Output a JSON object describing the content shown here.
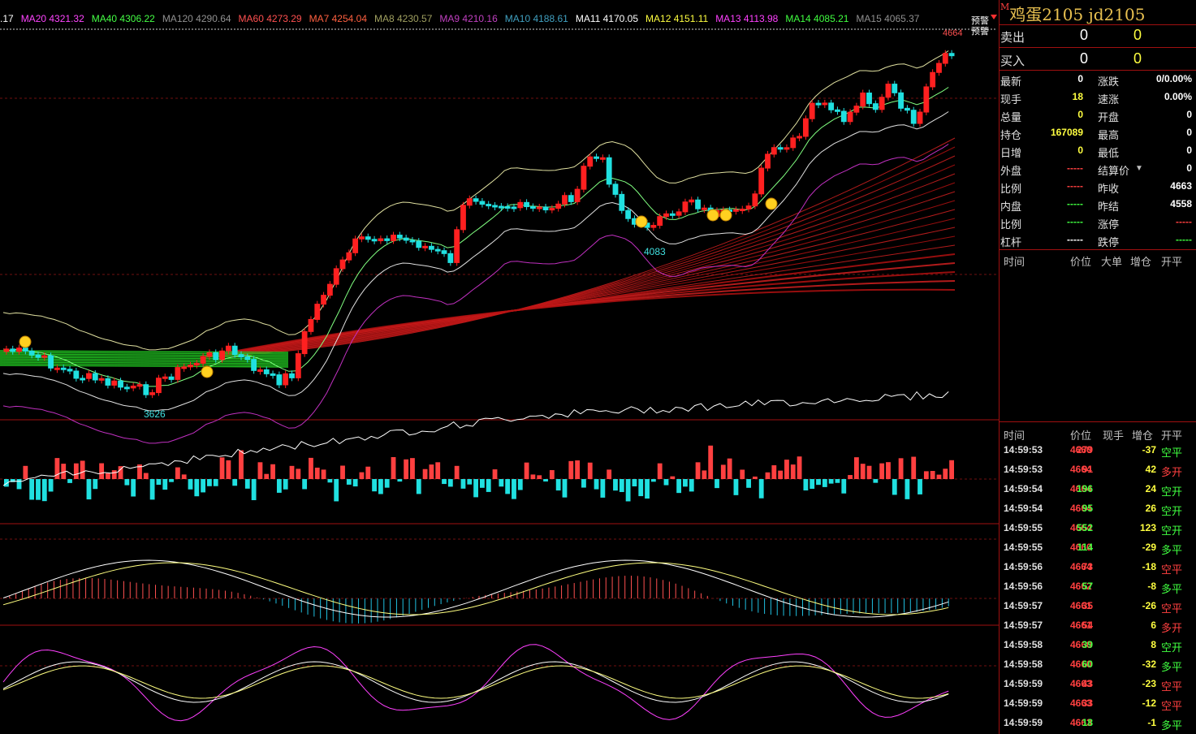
{
  "ma_indicators": [
    {
      "label": ".17",
      "color": "#ffffff"
    },
    {
      "label": "MA20 4321.32",
      "color": "#ff44ff"
    },
    {
      "label": "MA40 4306.22",
      "color": "#44ff44"
    },
    {
      "label": "MA120 4290.64",
      "color": "#909090"
    },
    {
      "label": "MA60 4273.29",
      "color": "#ff5050"
    },
    {
      "label": "MA7 4254.04",
      "color": "#ff6040"
    },
    {
      "label": "MA8 4230.57",
      "color": "#a0a060"
    },
    {
      "label": "MA9 4210.16",
      "color": "#c040c0"
    },
    {
      "label": "MA10 4188.61",
      "color": "#40a0c0"
    },
    {
      "label": "MA11 4170.05",
      "color": "#ffffff"
    },
    {
      "label": "MA12 4151.11",
      "color": "#ffff40"
    },
    {
      "label": "MA13 4113.98",
      "color": "#ff40ff"
    },
    {
      "label": "MA14 4085.21",
      "color": "#40ff40"
    },
    {
      "label": "MA15 4065.37",
      "color": "#909090"
    }
  ],
  "chart_labels": {
    "alert1": "预警",
    "alert2": "预警",
    "last_price_tag": "4664",
    "low_label": "3626",
    "mid_low_label": "4083"
  },
  "panel": {
    "marker": "M",
    "title": "鸡蛋2105  jd2105",
    "sell": {
      "label": "卖出",
      "price": "0",
      "vol": "0"
    },
    "buy": {
      "label": "买入",
      "price": "0",
      "vol": "0"
    },
    "stats": [
      {
        "l1": "最新",
        "v1": "0",
        "c1": "#ffffff",
        "l2": "涨跌",
        "v2": "0/0.00%",
        "c2": "#ffffff"
      },
      {
        "l1": "现手",
        "v1": "18",
        "c1": "#ffff40",
        "l2": "速涨",
        "v2": "0.00%",
        "c2": "#ffffff"
      },
      {
        "l1": "总量",
        "v1": "0",
        "c1": "#ffff40",
        "l2": "开盘",
        "v2": "0",
        "c2": "#ffffff"
      },
      {
        "l1": "持仓",
        "v1": "167089",
        "c1": "#ffff40",
        "l2": "最高",
        "v2": "0",
        "c2": "#ffffff"
      },
      {
        "l1": "日增",
        "v1": "0",
        "c1": "#ffff40",
        "l2": "最低",
        "v2": "0",
        "c2": "#ffffff"
      },
      {
        "l1": "外盘",
        "v1": "-----",
        "c1": "#ff4040",
        "l2": "结算价",
        "v2": "0",
        "c2": "#ffffff",
        "dropdown": "▼"
      },
      {
        "l1": "比例",
        "v1": "-----",
        "c1": "#ff4040",
        "l2": "昨收",
        "v2": "4663",
        "c2": "#ffffff"
      },
      {
        "l1": "内盘",
        "v1": "-----",
        "c1": "#40ff40",
        "l2": "昨结",
        "v2": "4558",
        "c2": "#ffffff"
      },
      {
        "l1": "比例",
        "v1": "-----",
        "c1": "#40ff40",
        "l2": "涨停",
        "v2": "-----",
        "c2": "#ff4040"
      },
      {
        "l1": "杠杆",
        "v1": "-----",
        "c1": "#ffffff",
        "l2": "跌停",
        "v2": "-----",
        "c2": "#40ff40"
      }
    ],
    "big_header": {
      "time": "时间",
      "price": "价位",
      "big": "大单",
      "oi": "增仓",
      "type": "开平"
    },
    "tick_header": {
      "time": "时间",
      "price": "价位",
      "vol": "现手",
      "oi": "增仓",
      "type": "开平"
    },
    "ticks": [
      {
        "time": "14:59:53",
        "price": "4660",
        "vol": "279",
        "oi": "-37",
        "type": "空平",
        "vc": "#ff4040",
        "tc": "#40ff40"
      },
      {
        "time": "14:59:53",
        "price": "4664",
        "vol": "91",
        "oi": "42",
        "type": "多开",
        "vc": "#ff4040",
        "tc": "#ff4040"
      },
      {
        "time": "14:59:54",
        "price": "4664",
        "vol": "196",
        "oi": "24",
        "type": "空开",
        "vc": "#40ff40",
        "tc": "#40ff40"
      },
      {
        "time": "14:59:54",
        "price": "4664",
        "vol": "95",
        "oi": "26",
        "type": "空开",
        "vc": "#40ff40",
        "tc": "#40ff40"
      },
      {
        "time": "14:59:55",
        "price": "4664",
        "vol": "552",
        "oi": "123",
        "type": "空开",
        "vc": "#40ff40",
        "tc": "#40ff40"
      },
      {
        "time": "14:59:55",
        "price": "4660",
        "vol": "114",
        "oi": "-29",
        "type": "多平",
        "vc": "#40ff40",
        "tc": "#40ff40"
      },
      {
        "time": "14:59:56",
        "price": "4664",
        "vol": "73",
        "oi": "-18",
        "type": "空平",
        "vc": "#ff4040",
        "tc": "#ff4040"
      },
      {
        "time": "14:59:56",
        "price": "4662",
        "vol": "57",
        "oi": "-8",
        "type": "多平",
        "vc": "#40ff40",
        "tc": "#40ff40"
      },
      {
        "time": "14:59:57",
        "price": "4661",
        "vol": "35",
        "oi": "-26",
        "type": "空平",
        "vc": "#ff4040",
        "tc": "#ff4040"
      },
      {
        "time": "14:59:57",
        "price": "4661",
        "vol": "54",
        "oi": "6",
        "type": "多开",
        "vc": "#ff4040",
        "tc": "#ff4040"
      },
      {
        "time": "14:59:58",
        "price": "4660",
        "vol": "39",
        "oi": "8",
        "type": "空开",
        "vc": "#40ff40",
        "tc": "#40ff40"
      },
      {
        "time": "14:59:58",
        "price": "4660",
        "vol": "60",
        "oi": "-32",
        "type": "多平",
        "vc": "#40ff40",
        "tc": "#40ff40"
      },
      {
        "time": "14:59:59",
        "price": "4663",
        "vol": "43",
        "oi": "-23",
        "type": "空平",
        "vc": "#ff4040",
        "tc": "#ff4040"
      },
      {
        "time": "14:59:59",
        "price": "4663",
        "vol": "33",
        "oi": "-12",
        "type": "空平",
        "vc": "#ff4040",
        "tc": "#ff4040"
      },
      {
        "time": "14:59:59",
        "price": "4663",
        "vol": "18",
        "oi": "-1",
        "type": "多平",
        "vc": "#40ff40",
        "tc": "#40ff40"
      }
    ]
  }
}
